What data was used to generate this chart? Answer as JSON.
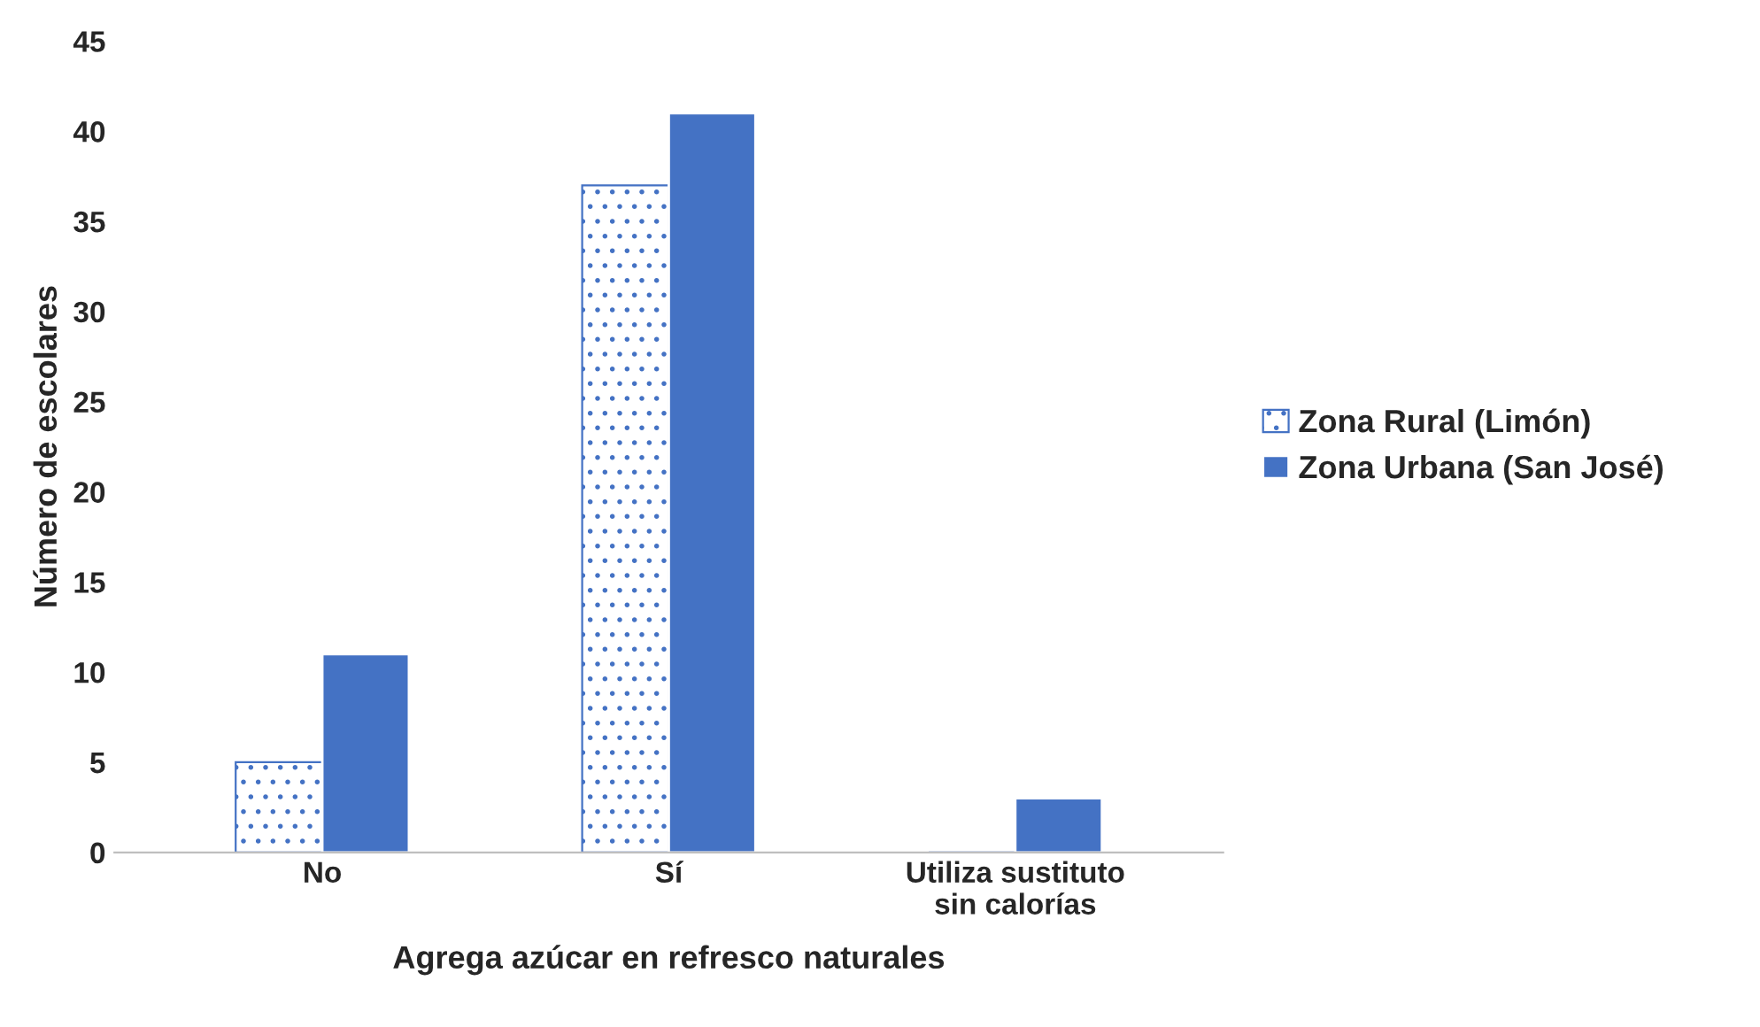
{
  "chart_data": {
    "type": "bar",
    "xlabel": "Agrega azúcar en refresco naturales",
    "ylabel": "Número de escolares",
    "categories": [
      "No",
      "Sí",
      "Utiliza sustituto\nsin calorías"
    ],
    "series": [
      {
        "name": "Zona Rural (Limón)",
        "color": "#4472c4",
        "values": [
          5,
          37,
          0
        ]
      },
      {
        "name": "Zona Urbana (San José)",
        "color": "#4472c4",
        "values": [
          11,
          41,
          3
        ]
      }
    ],
    "ylim": [
      0,
      45
    ],
    "yticks": [
      0,
      5,
      10,
      15,
      20,
      25,
      30,
      35,
      40,
      45
    ],
    "grid": false,
    "legend": "right"
  }
}
